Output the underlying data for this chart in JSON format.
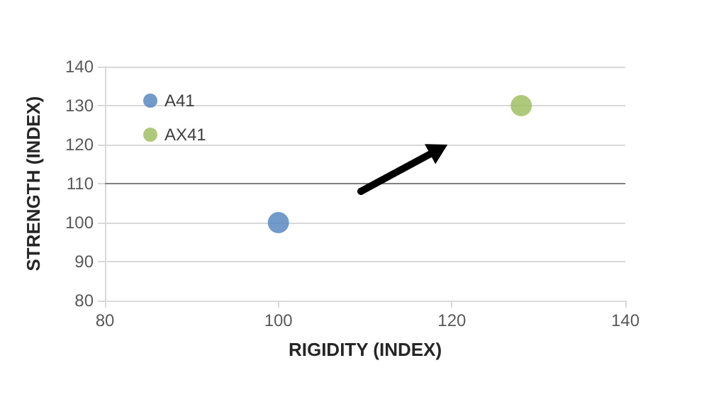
{
  "chart_data": {
    "type": "scatter",
    "xlabel": "RIGIDITY (INDEX)",
    "ylabel": "STRENGTH (INDEX)",
    "xlim": [
      80,
      140
    ],
    "xticks": [
      80,
      100,
      120,
      140
    ],
    "ylim": [
      80,
      140
    ],
    "yticks": [
      80,
      90,
      100,
      110,
      120,
      130,
      140
    ],
    "series": [
      {
        "name": "A41",
        "color": "#4f81bd",
        "x": [
          100
        ],
        "values": [
          100
        ]
      },
      {
        "name": "AX41",
        "color": "#9bbb59",
        "x": [
          128
        ],
        "values": [
          130
        ]
      }
    ],
    "ref_lines": [
      {
        "axis": "y",
        "value": 110,
        "color": "#808080"
      }
    ],
    "grid": "y",
    "legend": "top left",
    "marker": "circle"
  }
}
